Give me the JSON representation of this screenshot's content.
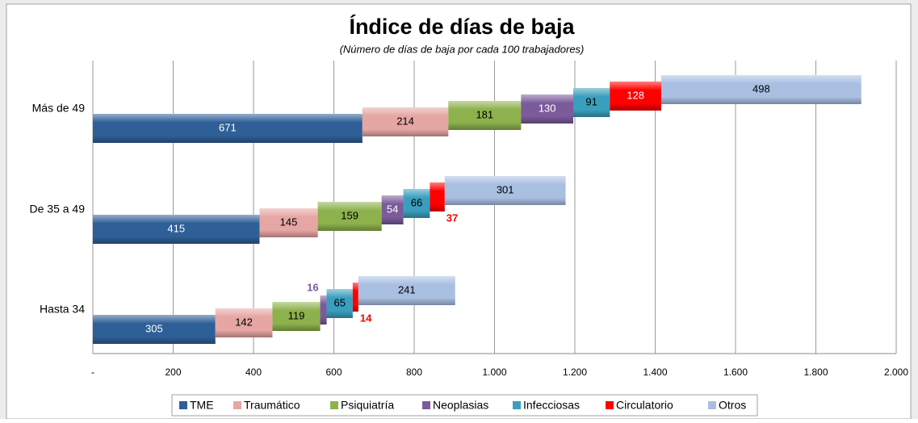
{
  "chart_data": {
    "type": "stepped_bar",
    "title": "Índice de días de baja",
    "subtitle": "(Número  de días de baja por cada 100 trabajadores)",
    "categories": [
      "Más de 49",
      "De 35 a 49",
      "Hasta 34"
    ],
    "series": [
      {
        "name": "TME",
        "color": "#2f5f97",
        "values": [
          671,
          415,
          305
        ]
      },
      {
        "name": "Traumático",
        "color": "#e6a6a4",
        "values": [
          214,
          145,
          142
        ]
      },
      {
        "name": "Psiquiatría",
        "color": "#8db14c",
        "values": [
          181,
          159,
          119
        ]
      },
      {
        "name": "Neoplasias",
        "color": "#7b5b9b",
        "values": [
          130,
          54,
          16
        ]
      },
      {
        "name": "Infecciosas",
        "color": "#3a9fbd",
        "values": [
          91,
          66,
          65
        ]
      },
      {
        "name": "Circulatorio",
        "color": "#ff0000",
        "values": [
          128,
          37,
          14
        ]
      },
      {
        "name": "Otros",
        "color": "#a9bfe2",
        "values": [
          498,
          301,
          241
        ]
      }
    ],
    "xlim": [
      0,
      2000
    ],
    "xticks": [
      {
        "value": 0,
        "label": "-"
      },
      200,
      400,
      600,
      800,
      {
        "value": 1000,
        "label": "1.000"
      },
      {
        "value": 1200,
        "label": "1.200"
      },
      {
        "value": 1400,
        "label": "1.400"
      },
      {
        "value": 1600,
        "label": "1.600"
      },
      {
        "value": 1800,
        "label": "1.800"
      },
      {
        "value": 2000,
        "label": "2.000"
      }
    ],
    "grid": true,
    "legend": "bottom"
  }
}
